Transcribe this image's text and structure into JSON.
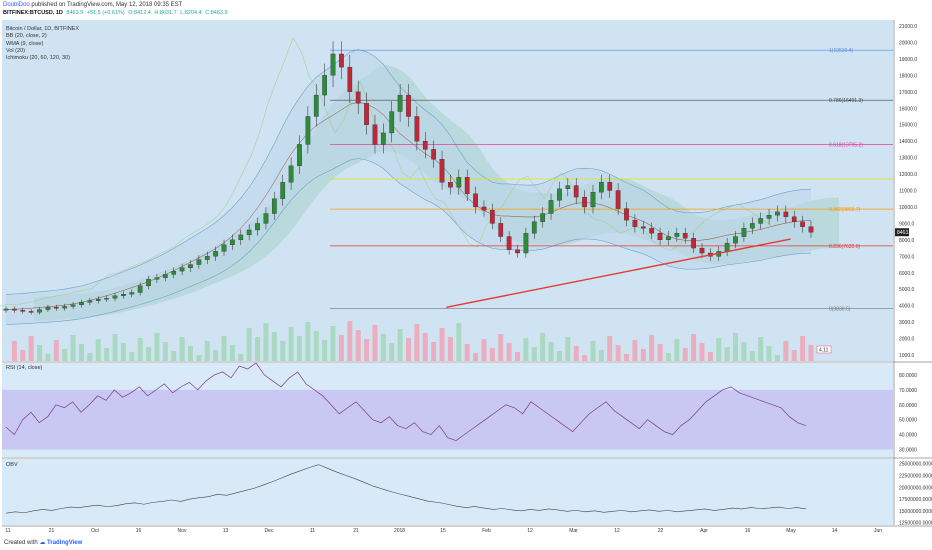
{
  "header": {
    "author": "DoubiDoo",
    "published_text": "published on TradingView.com, May 12, 2018 09:35 EST",
    "symbol": "BITFINEX:BTCUSD, 1D",
    "last": "8463.9",
    "change": "+51.5 (+0.61%)",
    "open": "O:8412.4",
    "high": "H:8631.7",
    "low": "L:8204.4",
    "close": "C:8463.9"
  },
  "legend": [
    "Bitcoin / Dollar, 1D, BITFINEX",
    "BB (20, close, 2)",
    "WMA (9, close)",
    "Vol (20)",
    "Ichimoku (20, 60, 120, 30)"
  ],
  "footer": {
    "created_with": "Created with",
    "brand": "TradingView"
  },
  "chart_data": {
    "type": "candlestick",
    "price_axis": [
      "21000.0",
      "20000.0",
      "19000.0",
      "18000.0",
      "17000.0",
      "16000.0",
      "15000.0",
      "14000.0",
      "13000.0",
      "12000.0",
      "11000.0",
      "10000.0",
      "9000.0",
      "8000.0",
      "7000.0",
      "6000.0",
      "5000.0",
      "4000.0",
      "3000.0",
      "2000.0",
      "1000.0"
    ],
    "ylim": [
      1000,
      21000
    ],
    "last_price_label": "8463.9",
    "volume_label": "4.11",
    "fib_levels": [
      {
        "label": "1(19530.4)",
        "value": 19530.4,
        "color": "#5b8fd4"
      },
      {
        "label": "0.786(16491.3)",
        "value": 16491.3,
        "color": "#444444"
      },
      {
        "label": "0.618(13795.2)",
        "value": 13795.2,
        "color": "#e040a0"
      },
      {
        "label": "",
        "value": 11700,
        "color": "#e6e600"
      },
      {
        "label": "0.382(9868.7)",
        "value": 9868.7,
        "color": "#ff9800"
      },
      {
        "label": "0.236(7632.0)",
        "value": 7632.0,
        "color": "#e53935"
      },
      {
        "label": "0(3830.5)",
        "value": 3830.5,
        "color": "#777777"
      }
    ],
    "trendline": {
      "color": "#e53935",
      "from": [
        0.4987,
        3900
      ],
      "to": [
        0.885,
        8050
      ]
    },
    "x_ticks": [
      "11",
      "21",
      "Oct",
      "16",
      "Nov",
      "13",
      "Dec",
      "11",
      "21",
      "2018",
      "15",
      "Feb",
      "12",
      "Mar",
      "12",
      "22",
      "Apr",
      "16",
      "May",
      "14",
      "Jun"
    ],
    "price_path": [
      3800,
      3720,
      3650,
      3600,
      3760,
      3900,
      3850,
      3950,
      4050,
      4200,
      4300,
      4400,
      4450,
      4600,
      4700,
      4800,
      5200,
      5600,
      5700,
      5900,
      6100,
      6300,
      6500,
      6800,
      7000,
      7300,
      7700,
      8000,
      8300,
      8600,
      9000,
      9600,
      10500,
      11500,
      12500,
      13800,
      15500,
      16800,
      18000,
      19300,
      18500,
      17000,
      16300,
      15000,
      13800,
      14500,
      15800,
      16800,
      15500,
      14000,
      13500,
      12900,
      11500,
      11200,
      11800,
      10800,
      10000,
      9800,
      9000,
      8200,
      7400,
      7200,
      8400,
      9100,
      9600,
      10400,
      11100,
      11300,
      10600,
      10000,
      10900,
      11500,
      11000,
      9900,
      9200,
      8800,
      8700,
      8400,
      8000,
      8200,
      8400,
      8100,
      7500,
      7200,
      7000,
      7300,
      7800,
      8200,
      8700,
      9000,
      9300,
      9500,
      9700,
      9400,
      9100,
      8800,
      8460
    ],
    "rsi": {
      "label": "RSI (14, close)",
      "axis": [
        "80.0000",
        "70.0000",
        "60.0000",
        "50.0000",
        "40.0000",
        "30.0000"
      ],
      "band": [
        30,
        70
      ],
      "ylim": [
        25,
        88
      ],
      "values": [
        45,
        40,
        50,
        55,
        48,
        52,
        60,
        58,
        62,
        55,
        60,
        66,
        63,
        70,
        65,
        68,
        72,
        66,
        70,
        74,
        68,
        72,
        75,
        70,
        76,
        80,
        82,
        78,
        86,
        84,
        88,
        80,
        76,
        72,
        78,
        82,
        74,
        70,
        66,
        60,
        54,
        58,
        62,
        56,
        50,
        48,
        52,
        46,
        44,
        48,
        42,
        40,
        46,
        38,
        36,
        40,
        44,
        48,
        52,
        56,
        60,
        58,
        54,
        62,
        58,
        54,
        50,
        46,
        42,
        48,
        54,
        58,
        62,
        56,
        52,
        48,
        44,
        50,
        46,
        42,
        40,
        46,
        50,
        56,
        62,
        66,
        70,
        72,
        68,
        66,
        64,
        62,
        60,
        58,
        52,
        48,
        46
      ]
    },
    "obv": {
      "label": "OBV",
      "axis": [
        "25000000.0000",
        "22500000.0000",
        "20000000.0000",
        "17500000.0000",
        "15000000.0000",
        "12500000.0000"
      ],
      "ylim": [
        12000000,
        26000000
      ],
      "values": [
        14500000,
        14800000,
        14600000,
        15000000,
        15300000,
        15100000,
        15500000,
        15800000,
        15700000,
        16000000,
        16200000,
        15900000,
        16100000,
        16500000,
        16700000,
        16400000,
        16800000,
        17000000,
        17300000,
        17000000,
        17500000,
        17800000,
        18000000,
        18500000,
        18300000,
        18800000,
        19300000,
        19800000,
        20500000,
        21200000,
        22000000,
        22800000,
        23500000,
        24200000,
        24800000,
        24000000,
        23200000,
        22500000,
        21800000,
        21000000,
        20200000,
        19600000,
        19000000,
        18500000,
        18000000,
        17500000,
        17000000,
        16800000,
        16400000,
        16000000,
        15700000,
        15900000,
        15600000,
        15300000,
        15500000,
        15200000,
        15000000,
        15300000,
        15100000,
        15400000,
        15200000,
        14900000,
        15100000,
        14800000,
        15000000,
        14700000,
        14900000,
        15100000,
        14800000,
        15000000,
        15200000,
        14900000,
        15100000,
        14800000,
        15000000,
        15200000,
        15400000,
        15100000,
        15300000,
        15600000,
        15400000,
        15700000,
        15500000,
        15600000,
        15800000,
        15500000,
        15700000,
        15400000
      ]
    }
  }
}
